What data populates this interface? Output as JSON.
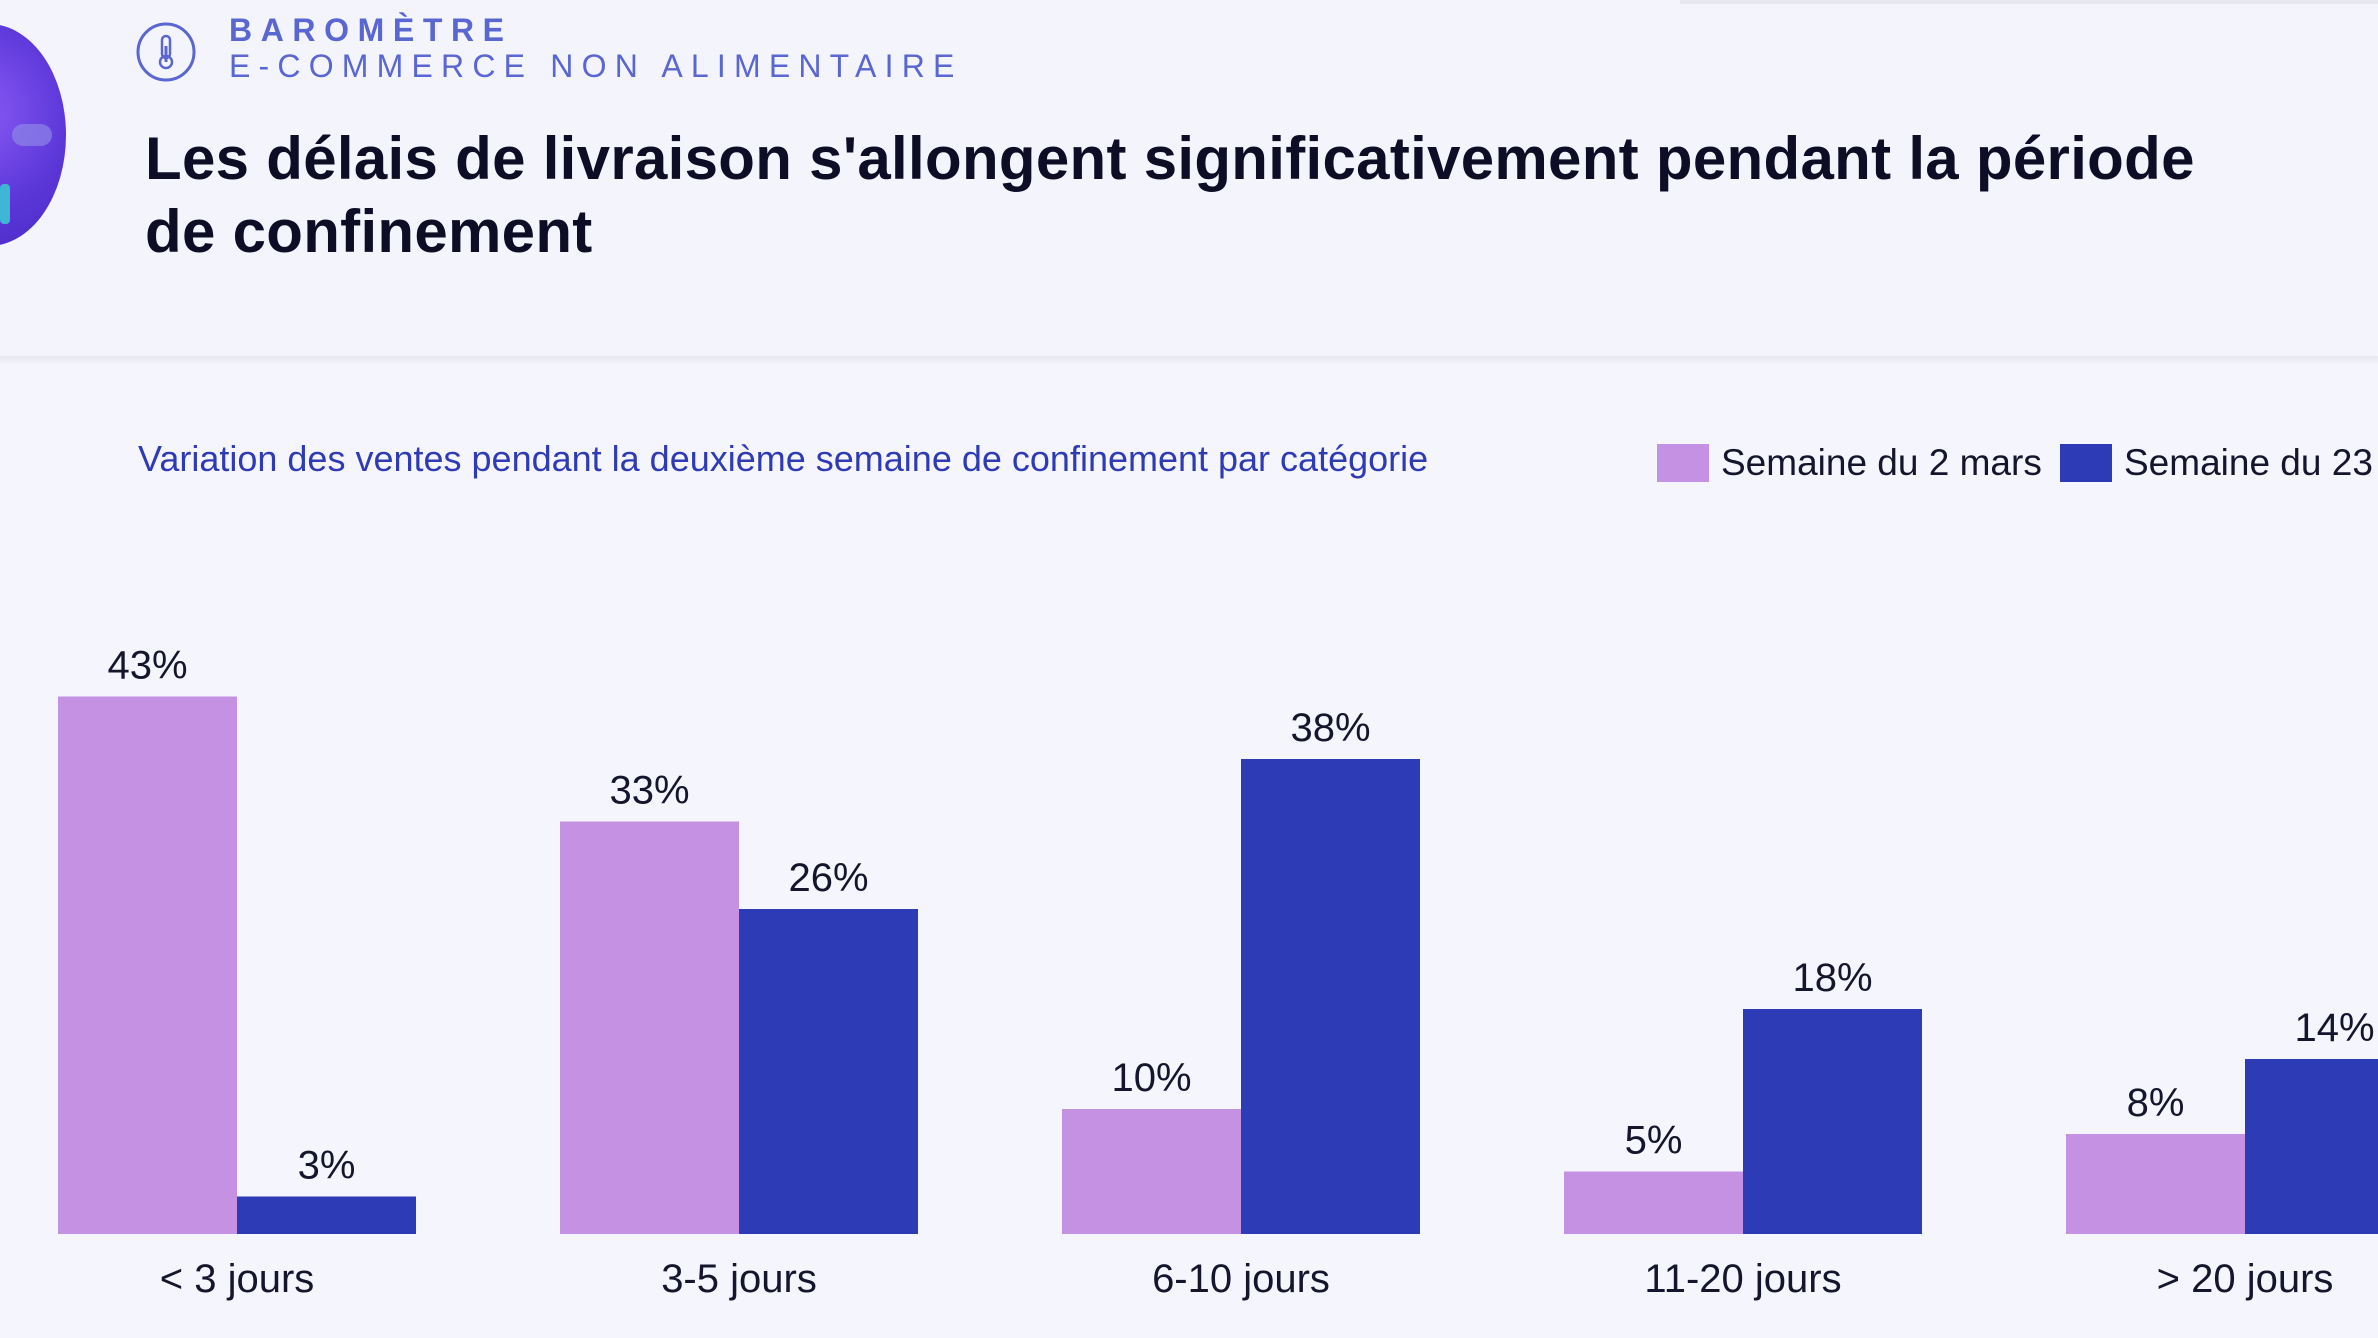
{
  "brand": {
    "title": "BAROMÈTRE",
    "subtitle": "E-COMMERCE NON ALIMENTAIRE",
    "icon": "thermometer-icon"
  },
  "headline": "Les délais de livraison s'allongent significativement pendant la période de confinement",
  "colors": {
    "series_1": "#c592e3",
    "series_2": "#2e3bb6",
    "brand": "#5a66d1",
    "title": "#0d0d26",
    "subtitle": "#2f3bb5"
  },
  "chart_data": {
    "type": "bar",
    "title": "Variation des ventes pendant la deuxième semaine de confinement par catégorie",
    "categories": [
      "< 3 jours",
      "3-5 jours",
      "6-10 jours",
      "11-20 jours",
      "> 20 jours"
    ],
    "series": [
      {
        "name": "Semaine du 2 mars",
        "values": [
          43,
          33,
          10,
          5,
          8
        ],
        "labels": [
          "43%",
          "33%",
          "10%",
          "5%",
          "8%"
        ]
      },
      {
        "name": "Semaine du 23",
        "values": [
          3,
          26,
          38,
          18,
          14
        ],
        "labels": [
          "3%",
          "26%",
          "38%",
          "18%",
          "14%"
        ]
      }
    ],
    "unit": "%",
    "legend_position": "top-right",
    "grid": false
  }
}
